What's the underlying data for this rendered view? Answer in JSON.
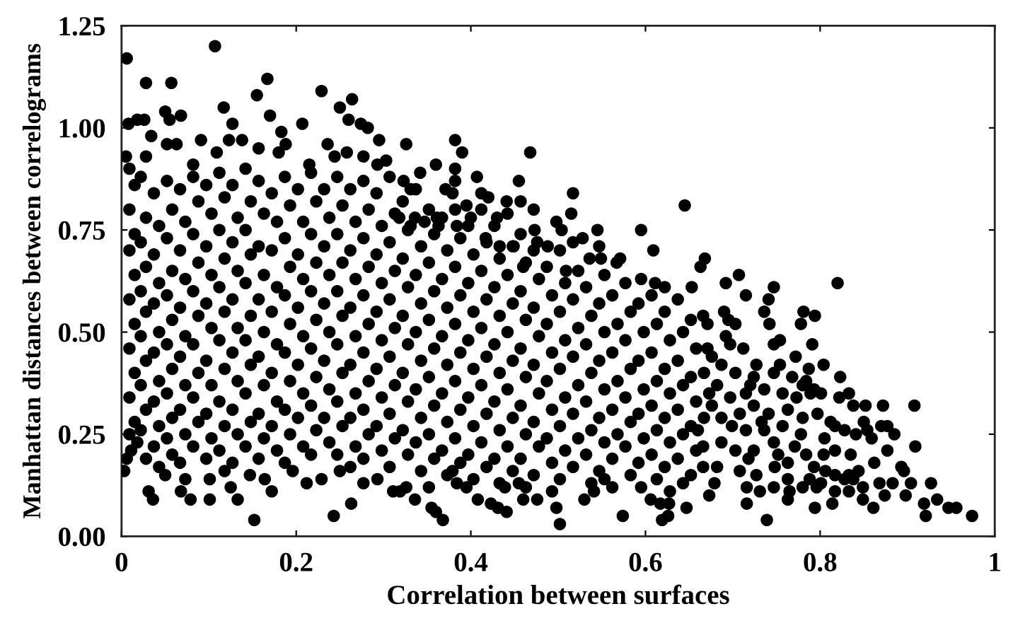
{
  "chart_data": {
    "type": "scatter",
    "xlabel": "Correlation between surfaces",
    "ylabel": "Manhattan distances between correlograms",
    "xlim": [
      0,
      1
    ],
    "ylim": [
      0,
      1.25
    ],
    "xticks": [
      0,
      0.2,
      0.4,
      0.6,
      0.8,
      1
    ],
    "yticks": [
      {
        "value": 0,
        "label": "0.00"
      },
      {
        "value": 0.25,
        "label": "0.25"
      },
      {
        "value": 0.5,
        "label": "0.50"
      },
      {
        "value": 0.75,
        "label": "0.75"
      },
      {
        "value": 1,
        "label": "1.00"
      },
      {
        "value": 1.25,
        "label": "1.25"
      }
    ],
    "marker": "circle",
    "color": "#000000",
    "x": [
      0.006,
      0.107,
      0.028,
      0.057,
      0.167,
      0.155,
      0.229,
      0.25,
      0.264,
      0.117,
      0.05,
      0.008,
      0.018,
      0.026,
      0.034,
      0.055,
      0.068,
      0.17,
      0.207,
      0.127,
      0.123,
      0.138,
      0.183,
      0.188,
      0.26,
      0.274,
      0.282,
      0.295,
      0.326,
      0.091,
      0.052,
      0.063,
      0.028,
      0.109,
      0.157,
      0.18,
      0.236,
      0.244,
      0.258,
      0.005,
      0.082,
      0.215,
      0.277,
      0.293,
      0.303,
      0.382,
      0.39,
      0.468,
      0.36,
      0.382,
      0.382,
      0.407,
      0.455,
      0.517,
      0.645,
      0.342,
      0.323,
      0.331,
      0.371,
      0.379,
      0.395,
      0.412,
      0.42,
      0.441,
      0.457,
      0.472,
      0.515,
      0.361,
      0.4,
      0.384,
      0.43,
      0.473,
      0.498,
      0.504,
      0.528,
      0.545,
      0.595,
      0.609,
      0.571,
      0.567,
      0.536,
      0.549,
      0.509,
      0.595,
      0.611,
      0.622,
      0.653,
      0.663,
      0.668,
      0.488,
      0.476,
      0.449,
      0.46,
      0.417,
      0.433,
      0.363,
      0.347,
      0.331,
      0.318,
      0.336,
      0.707,
      0.692,
      0.747,
      0.82,
      0.715,
      0.741,
      0.736,
      0.781,
      0.794,
      0.778,
      0.754,
      0.747,
      0.791,
      0.804,
      0.754,
      0.768,
      0.784,
      0.872,
      0.908,
      0.852,
      0.833,
      0.87,
      0.877,
      0.885,
      0.909,
      0.859,
      0.893,
      0.896,
      0.904,
      0.927,
      0.874,
      0.898,
      0.934,
      0.919,
      0.921,
      0.947,
      0.956,
      0.974,
      0.861,
      0.814,
      0.794,
      0.739,
      0.763,
      0.765,
      0.716,
      0.679,
      0.838,
      0.844,
      0.833,
      0.849,
      0.817,
      0.828,
      0.788,
      0.796,
      0.724,
      0.72,
      0.736,
      0.666,
      0.671,
      0.69,
      0.695,
      0.703,
      0.692,
      0.671,
      0.676,
      0.687,
      0.757,
      0.773,
      0.789,
      0.801,
      0.763,
      0.78,
      0.797,
      0.812,
      0.817,
      0.828,
      0.841,
      0.854,
      0.736,
      0.747,
      0.724,
      0.752,
      0.771,
      0.784,
      0.804,
      0.763,
      0.806,
      0.801,
      0.78,
      0.817,
      0.833,
      0.849,
      0.708,
      0.716,
      0.731,
      0.747,
      0.682,
      0.666,
      0.676,
      0.687,
      0.699,
      0.708,
      0.715,
      0.66,
      0.666,
      0.687,
      0.703,
      0.724,
      0.741,
      0.715,
      0.747,
      0.78,
      0.793,
      0.822,
      0.838,
      0.355,
      0.368,
      0.36,
      0.502,
      0.574,
      0.619,
      0.626,
      0.647,
      0.441,
      0.431,
      0.408,
      0.423,
      0.476,
      0.493,
      0.498,
      0.541,
      0.53,
      0.562,
      0.553,
      0.595,
      0.606,
      0.617,
      0.627,
      0.319,
      0.336,
      0.352,
      0.384,
      0.395,
      0.379,
      0.439,
      0.455,
      0.46,
      0.152,
      0.243,
      0.263,
      0.172,
      0.212,
      0.101,
      0.036,
      0.068,
      0.079,
      0.125,
      0.133,
      0.031,
      0.003,
      0.006,
      0.05,
      0.101,
      0.147,
      0.164,
      0.196,
      0.229,
      0.25,
      0.277,
      0.293,
      0.311,
      0.326,
      0.018,
      0.011,
      0.009,
      0.015,
      0.009,
      0.015,
      0.009,
      0.015,
      0.009,
      0.015,
      0.009,
      0.015,
      0.009,
      0.015,
      0.009,
      0.022,
      0.028,
      0.022,
      0.028,
      0.022,
      0.028,
      0.022,
      0.028,
      0.022,
      0.028,
      0.022,
      0.028,
      0.037,
      0.043,
      0.037,
      0.043,
      0.037,
      0.043,
      0.037,
      0.043,
      0.037,
      0.043,
      0.037,
      0.043,
      0.052,
      0.058,
      0.052,
      0.058,
      0.052,
      0.058,
      0.052,
      0.058,
      0.052,
      0.058,
      0.052,
      0.058,
      0.067,
      0.073,
      0.067,
      0.073,
      0.067,
      0.073,
      0.067,
      0.073,
      0.067,
      0.073,
      0.067,
      0.073,
      0.082,
      0.088,
      0.082,
      0.088,
      0.082,
      0.088,
      0.082,
      0.088,
      0.082,
      0.088,
      0.082,
      0.097,
      0.103,
      0.097,
      0.103,
      0.097,
      0.103,
      0.097,
      0.103,
      0.097,
      0.103,
      0.097,
      0.112,
      0.118,
      0.112,
      0.118,
      0.112,
      0.118,
      0.112,
      0.118,
      0.112,
      0.118,
      0.112,
      0.118,
      0.127,
      0.133,
      0.127,
      0.133,
      0.127,
      0.133,
      0.127,
      0.133,
      0.127,
      0.133,
      0.127,
      0.142,
      0.148,
      0.142,
      0.148,
      0.142,
      0.148,
      0.142,
      0.148,
      0.142,
      0.148,
      0.142,
      0.157,
      0.163,
      0.157,
      0.163,
      0.157,
      0.163,
      0.157,
      0.163,
      0.157,
      0.163,
      0.157,
      0.172,
      0.178,
      0.172,
      0.178,
      0.172,
      0.178,
      0.172,
      0.178,
      0.172,
      0.178,
      0.187,
      0.193,
      0.187,
      0.193,
      0.187,
      0.193,
      0.187,
      0.193,
      0.187,
      0.193,
      0.187,
      0.202,
      0.208,
      0.202,
      0.208,
      0.202,
      0.208,
      0.202,
      0.208,
      0.202,
      0.208,
      0.217,
      0.223,
      0.217,
      0.223,
      0.217,
      0.223,
      0.217,
      0.223,
      0.217,
      0.223,
      0.217,
      0.232,
      0.238,
      0.232,
      0.238,
      0.232,
      0.238,
      0.232,
      0.238,
      0.232,
      0.238,
      0.247,
      0.253,
      0.247,
      0.253,
      0.247,
      0.253,
      0.247,
      0.253,
      0.247,
      0.253,
      0.247,
      0.262,
      0.268,
      0.262,
      0.268,
      0.262,
      0.268,
      0.262,
      0.268,
      0.262,
      0.268,
      0.262,
      0.277,
      0.283,
      0.277,
      0.283,
      0.277,
      0.283,
      0.277,
      0.283,
      0.277,
      0.283,
      0.277,
      0.292,
      0.298,
      0.292,
      0.298,
      0.292,
      0.298,
      0.292,
      0.298,
      0.292,
      0.298,
      0.307,
      0.313,
      0.307,
      0.313,
      0.307,
      0.313,
      0.307,
      0.313,
      0.307,
      0.313,
      0.307,
      0.322,
      0.328,
      0.322,
      0.328,
      0.322,
      0.328,
      0.322,
      0.328,
      0.322,
      0.328,
      0.337,
      0.343,
      0.337,
      0.343,
      0.337,
      0.343,
      0.337,
      0.343,
      0.337,
      0.343,
      0.352,
      0.358,
      0.352,
      0.358,
      0.352,
      0.358,
      0.352,
      0.358,
      0.352,
      0.358,
      0.367,
      0.373,
      0.367,
      0.373,
      0.367,
      0.373,
      0.367,
      0.373,
      0.367,
      0.373,
      0.382,
      0.388,
      0.382,
      0.388,
      0.382,
      0.388,
      0.382,
      0.388,
      0.382,
      0.388,
      0.397,
      0.403,
      0.397,
      0.403,
      0.397,
      0.403,
      0.397,
      0.403,
      0.397,
      0.403,
      0.412,
      0.418,
      0.412,
      0.418,
      0.412,
      0.418,
      0.412,
      0.418,
      0.412,
      0.418,
      0.427,
      0.433,
      0.427,
      0.433,
      0.427,
      0.433,
      0.427,
      0.433,
      0.427,
      0.433,
      0.442,
      0.448,
      0.442,
      0.448,
      0.442,
      0.448,
      0.442,
      0.448,
      0.442,
      0.448,
      0.457,
      0.463,
      0.457,
      0.463,
      0.457,
      0.463,
      0.457,
      0.463,
      0.457,
      0.463,
      0.472,
      0.478,
      0.472,
      0.478,
      0.472,
      0.478,
      0.472,
      0.478,
      0.472,
      0.487,
      0.493,
      0.487,
      0.493,
      0.487,
      0.493,
      0.487,
      0.493,
      0.502,
      0.508,
      0.502,
      0.508,
      0.502,
      0.508,
      0.502,
      0.508,
      0.502,
      0.517,
      0.523,
      0.517,
      0.523,
      0.517,
      0.523,
      0.517,
      0.523,
      0.517,
      0.532,
      0.538,
      0.532,
      0.538,
      0.532,
      0.538,
      0.532,
      0.538,
      0.547,
      0.553,
      0.547,
      0.553,
      0.547,
      0.553,
      0.547,
      0.553,
      0.547,
      0.562,
      0.568,
      0.562,
      0.568,
      0.562,
      0.568,
      0.562,
      0.577,
      0.583,
      0.577,
      0.583,
      0.577,
      0.583,
      0.577,
      0.583,
      0.592,
      0.598,
      0.592,
      0.598,
      0.592,
      0.598,
      0.592,
      0.607,
      0.613,
      0.607,
      0.613,
      0.607,
      0.613,
      0.607,
      0.613,
      0.622,
      0.628,
      0.622,
      0.628,
      0.622,
      0.628,
      0.622,
      0.628,
      0.637,
      0.643,
      0.637,
      0.643,
      0.637,
      0.643,
      0.637,
      0.643,
      0.652,
      0.658,
      0.652,
      0.658,
      0.652,
      0.658,
      0.652,
      0.667,
      0.673,
      0.667,
      0.673,
      0.682,
      0.697,
      0.703,
      0.697,
      0.712,
      0.718,
      0.727,
      0.733,
      0.727,
      0.742,
      0.748,
      0.757,
      0.763,
      0.772,
      0.778,
      0.787,
      0.793,
      0.805,
      0.817,
      0.823,
      0.835,
      0.85,
      0.862,
      0.868,
      0.877,
      0.883
    ],
    "values": [
      1.17,
      1.2,
      1.11,
      1.11,
      1.12,
      1.08,
      1.09,
      1.05,
      1.07,
      1.05,
      1.04,
      1.01,
      1.02,
      1.02,
      0.98,
      1.02,
      1.03,
      1.03,
      1.01,
      1.01,
      0.97,
      0.97,
      0.99,
      0.96,
      1.02,
      1.01,
      1.0,
      0.97,
      0.96,
      0.97,
      0.96,
      0.96,
      0.93,
      0.94,
      0.95,
      0.94,
      0.96,
      0.93,
      0.94,
      0.93,
      0.91,
      0.91,
      0.93,
      0.91,
      0.92,
      0.97,
      0.94,
      0.94,
      0.91,
      0.9,
      0.87,
      0.88,
      0.87,
      0.84,
      0.81,
      0.89,
      0.87,
      0.85,
      0.85,
      0.84,
      0.81,
      0.84,
      0.83,
      0.82,
      0.82,
      0.8,
      0.79,
      0.78,
      0.78,
      0.76,
      0.78,
      0.75,
      0.77,
      0.75,
      0.73,
      0.75,
      0.75,
      0.7,
      0.68,
      0.67,
      0.68,
      0.68,
      0.65,
      0.63,
      0.62,
      0.61,
      0.61,
      0.66,
      0.68,
      0.71,
      0.72,
      0.71,
      0.66,
      0.73,
      0.71,
      0.76,
      0.77,
      0.76,
      0.78,
      0.78,
      0.64,
      0.62,
      0.61,
      0.62,
      0.59,
      0.58,
      0.55,
      0.55,
      0.54,
      0.52,
      0.48,
      0.47,
      0.47,
      0.42,
      0.42,
      0.39,
      0.38,
      0.32,
      0.32,
      0.32,
      0.35,
      0.27,
      0.27,
      0.25,
      0.22,
      0.24,
      0.17,
      0.16,
      0.13,
      0.13,
      0.1,
      0.1,
      0.09,
      0.08,
      0.05,
      0.07,
      0.07,
      0.05,
      0.07,
      0.08,
      0.07,
      0.04,
      0.09,
      0.11,
      0.08,
      0.13,
      0.14,
      0.16,
      0.15,
      0.12,
      0.15,
      0.14,
      0.14,
      0.12,
      0.39,
      0.37,
      0.36,
      0.54,
      0.52,
      0.55,
      0.53,
      0.52,
      0.49,
      0.46,
      0.44,
      0.42,
      0.35,
      0.34,
      0.35,
      0.35,
      0.31,
      0.29,
      0.3,
      0.28,
      0.27,
      0.26,
      0.25,
      0.26,
      0.26,
      0.23,
      0.21,
      0.2,
      0.22,
      0.2,
      0.2,
      0.18,
      0.16,
      0.13,
      0.12,
      0.11,
      0.11,
      0.09,
      0.16,
      0.12,
      0.11,
      0.12,
      0.17,
      0.17,
      0.32,
      0.29,
      0.27,
      0.3,
      0.26,
      0.26,
      0.22,
      0.23,
      0.21,
      0.32,
      0.3,
      0.35,
      0.4,
      0.37,
      0.36,
      0.34,
      0.32,
      0.07,
      0.04,
      0.06,
      0.03,
      0.05,
      0.04,
      0.05,
      0.07,
      0.06,
      0.07,
      0.09,
      0.08,
      0.09,
      0.11,
      0.07,
      0.11,
      0.09,
      0.12,
      0.14,
      0.12,
      0.09,
      0.08,
      0.08,
      0.11,
      0.09,
      0.12,
      0.13,
      0.12,
      0.16,
      0.12,
      0.13,
      0.09,
      0.04,
      0.05,
      0.08,
      0.11,
      0.13,
      0.09,
      0.09,
      0.11,
      0.09,
      0.12,
      0.09,
      0.11,
      0.16,
      0.19,
      0.15,
      0.14,
      0.15,
      0.14,
      0.16,
      0.14,
      0.16,
      0.13,
      0.14,
      0.11,
      0.12,
      0.23,
      0.21,
      0.9,
      0.86,
      0.8,
      0.74,
      0.7,
      0.64,
      0.58,
      0.52,
      0.46,
      0.4,
      0.34,
      0.28,
      0.25,
      0.88,
      0.78,
      0.72,
      0.66,
      0.6,
      0.55,
      0.49,
      0.43,
      0.37,
      0.31,
      0.26,
      0.19,
      0.84,
      0.76,
      0.69,
      0.62,
      0.57,
      0.5,
      0.45,
      0.38,
      0.33,
      0.27,
      0.22,
      0.17,
      0.87,
      0.8,
      0.73,
      0.65,
      0.59,
      0.53,
      0.47,
      0.41,
      0.35,
      0.29,
      0.24,
      0.2,
      0.85,
      0.77,
      0.7,
      0.63,
      0.56,
      0.49,
      0.44,
      0.37,
      0.31,
      0.25,
      0.18,
      0.14,
      0.88,
      0.82,
      0.74,
      0.67,
      0.6,
      0.54,
      0.47,
      0.4,
      0.34,
      0.28,
      0.22,
      0.86,
      0.79,
      0.71,
      0.64,
      0.57,
      0.51,
      0.43,
      0.37,
      0.3,
      0.24,
      0.19,
      0.89,
      0.83,
      0.75,
      0.68,
      0.61,
      0.55,
      0.48,
      0.41,
      0.33,
      0.27,
      0.21,
      0.16,
      0.86,
      0.78,
      0.72,
      0.65,
      0.58,
      0.51,
      0.45,
      0.38,
      0.31,
      0.25,
      0.18,
      0.9,
      0.82,
      0.75,
      0.69,
      0.62,
      0.54,
      0.48,
      0.42,
      0.35,
      0.28,
      0.22,
      0.87,
      0.79,
      0.71,
      0.64,
      0.58,
      0.5,
      0.44,
      0.37,
      0.3,
      0.24,
      0.19,
      0.84,
      0.77,
      0.7,
      0.61,
      0.55,
      0.47,
      0.4,
      0.33,
      0.27,
      0.21,
      0.88,
      0.81,
      0.73,
      0.66,
      0.59,
      0.52,
      0.45,
      0.38,
      0.31,
      0.25,
      0.18,
      0.85,
      0.77,
      0.69,
      0.63,
      0.56,
      0.49,
      0.42,
      0.35,
      0.29,
      0.22,
      0.89,
      0.82,
      0.74,
      0.67,
      0.6,
      0.53,
      0.46,
      0.39,
      0.32,
      0.26,
      0.2,
      0.85,
      0.78,
      0.71,
      0.64,
      0.57,
      0.5,
      0.43,
      0.36,
      0.29,
      0.23,
      0.88,
      0.81,
      0.74,
      0.67,
      0.6,
      0.54,
      0.47,
      0.4,
      0.33,
      0.27,
      0.2,
      0.85,
      0.77,
      0.7,
      0.63,
      0.56,
      0.49,
      0.42,
      0.35,
      0.29,
      0.22,
      0.17,
      0.87,
      0.8,
      0.73,
      0.66,
      0.59,
      0.52,
      0.45,
      0.38,
      0.31,
      0.25,
      0.19,
      0.84,
      0.76,
      0.69,
      0.62,
      0.55,
      0.48,
      0.41,
      0.34,
      0.27,
      0.21,
      0.88,
      0.79,
      0.72,
      0.65,
      0.58,
      0.51,
      0.44,
      0.37,
      0.3,
      0.24,
      0.17,
      0.82,
      0.75,
      0.68,
      0.61,
      0.54,
      0.47,
      0.4,
      0.33,
      0.26,
      0.2,
      0.85,
      0.71,
      0.64,
      0.57,
      0.5,
      0.43,
      0.36,
      0.29,
      0.23,
      0.16,
      0.8,
      0.74,
      0.67,
      0.6,
      0.53,
      0.46,
      0.39,
      0.32,
      0.25,
      0.19,
      0.78,
      0.7,
      0.63,
      0.56,
      0.49,
      0.42,
      0.35,
      0.28,
      0.21,
      0.15,
      0.8,
      0.73,
      0.66,
      0.59,
      0.52,
      0.45,
      0.38,
      0.31,
      0.24,
      0.18,
      0.76,
      0.69,
      0.62,
      0.55,
      0.48,
      0.41,
      0.34,
      0.27,
      0.2,
      0.14,
      0.8,
      0.72,
      0.65,
      0.58,
      0.51,
      0.44,
      0.37,
      0.3,
      0.23,
      0.17,
      0.76,
      0.68,
      0.61,
      0.54,
      0.47,
      0.4,
      0.33,
      0.26,
      0.19,
      0.13,
      0.79,
      0.71,
      0.64,
      0.57,
      0.5,
      0.43,
      0.36,
      0.29,
      0.22,
      0.16,
      0.74,
      0.67,
      0.6,
      0.53,
      0.46,
      0.39,
      0.32,
      0.25,
      0.19,
      0.12,
      0.7,
      0.63,
      0.56,
      0.49,
      0.42,
      0.35,
      0.28,
      0.22,
      0.15,
      0.66,
      0.59,
      0.52,
      0.45,
      0.38,
      0.31,
      0.24,
      0.18,
      0.7,
      0.62,
      0.55,
      0.48,
      0.41,
      0.34,
      0.27,
      0.21,
      0.14,
      0.72,
      0.65,
      0.58,
      0.51,
      0.44,
      0.37,
      0.3,
      0.24,
      0.17,
      0.61,
      0.54,
      0.47,
      0.4,
      0.33,
      0.26,
      0.2,
      0.13,
      0.71,
      0.64,
      0.57,
      0.5,
      0.43,
      0.36,
      0.29,
      0.23,
      0.16,
      0.59,
      0.52,
      0.45,
      0.38,
      0.31,
      0.25,
      0.19,
      0.62,
      0.55,
      0.48,
      0.41,
      0.34,
      0.28,
      0.22,
      0.15,
      0.57,
      0.5,
      0.43,
      0.36,
      0.3,
      0.24,
      0.18,
      0.59,
      0.52,
      0.45,
      0.38,
      0.32,
      0.26,
      0.2,
      0.14,
      0.55,
      0.48,
      0.41,
      0.35,
      0.29,
      0.23,
      0.17,
      0.11,
      0.58,
      0.5,
      0.43,
      0.37,
      0.31,
      0.25,
      0.19,
      0.13,
      0.53,
      0.46,
      0.39,
      0.33,
      0.27,
      0.21,
      0.15,
      0.4,
      0.35,
      0.29,
      0.1,
      0.37,
      0.47,
      0.4,
      0.34,
      0.46,
      0.19,
      0.42,
      0.28,
      0.15,
      0.52,
      0.17,
      0.27,
      0.14,
      0.44,
      0.25,
      0.41,
      0.17,
      0.24,
      0.21,
      0.39,
      0.2,
      0.28,
      0.18,
      0.13,
      0.21,
      0.13
    ]
  }
}
